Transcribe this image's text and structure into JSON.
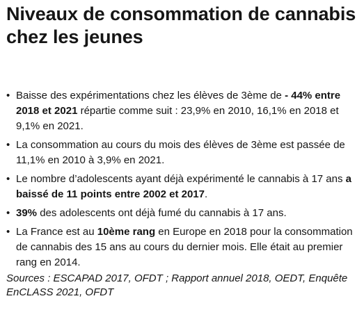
{
  "title": "Niveaux de consommation de cannabis chez les jeunes",
  "bullet_char": "•",
  "bullets": [
    {
      "p1": "Baisse des expérimentations chez les élèves de 3ème de ",
      "b1": "- 44% entre 2018 et 2021",
      "p2": " répartie comme suit : 23,9% en 2010, 16,1% en 2018 et 9,1% en 2021."
    },
    {
      "p1": "La consommation au cours du mois des élèves de 3ème est passée de 11,1% en 2010 à 3,9% en 2021."
    },
    {
      "p1": "Le nombre d’adolescents ayant déjà expérimenté le cannabis à 17 ans ",
      "b1": "a baissé de 11 points entre 2002 et 2017",
      "p2": "."
    },
    {
      "b1": "39%",
      "p2": " des adolescents ont déjà fumé du cannabis à 17 ans."
    },
    {
      "p1": "La France est au ",
      "b1": "10ème rang",
      "p2": " en Europe en 2018 pour la consommation de cannabis des 15 ans au cours du dernier mois. Elle était au premier rang en 2014."
    }
  ],
  "sources": "Sources : ESCAPAD 2017, OFDT ; Rapport annuel 2018, OEDT, Enquête EnCLASS 2021, OFDT"
}
